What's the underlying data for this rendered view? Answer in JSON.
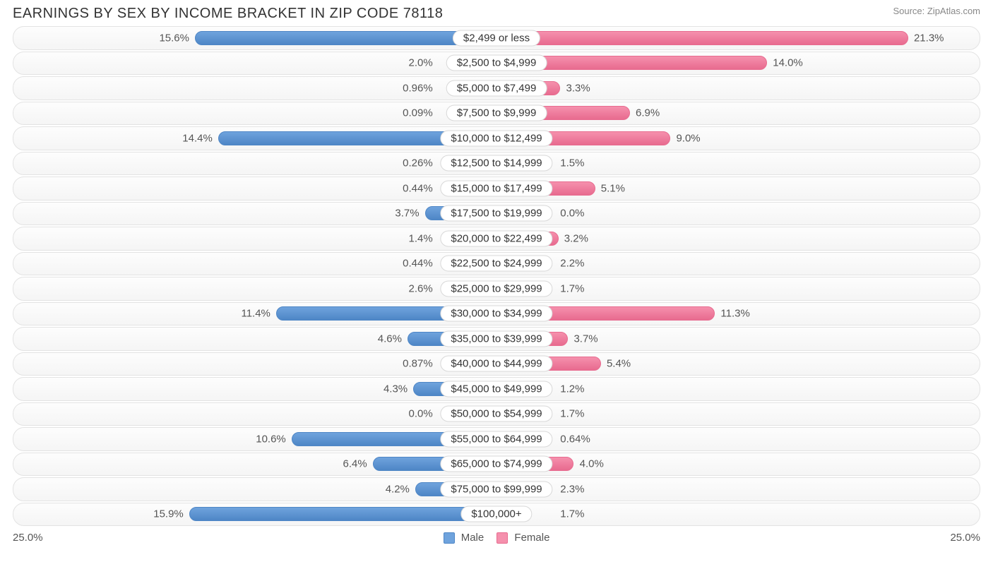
{
  "title": "EARNINGS BY SEX BY INCOME BRACKET IN ZIP CODE 78118",
  "source": "Source: ZipAtlas.com",
  "axis": {
    "left": "25.0%",
    "right": "25.0%",
    "max": 25.0
  },
  "legend": {
    "male": {
      "label": "Male",
      "color": "#6fa3dd",
      "border": "#4e86c6"
    },
    "female": {
      "label": "Female",
      "color": "#f590ad",
      "border": "#e86b8f"
    }
  },
  "label_pill_halfwidth_pct": 6.0,
  "colors": {
    "male_fill": "#6fa3dd",
    "male_stroke": "#4e86c6",
    "female_fill": "#f590ad",
    "female_stroke": "#e86b8f",
    "track_border": "#e3e3e3",
    "pill_border": "#d8d8d8",
    "text": "#555",
    "title": "#333",
    "source": "#888",
    "bg": "#ffffff"
  },
  "rows": [
    {
      "label": "$2,499 or less",
      "male": 15.6,
      "male_txt": "15.6%",
      "female": 21.3,
      "female_txt": "21.3%"
    },
    {
      "label": "$2,500 to $4,999",
      "male": 2.0,
      "male_txt": "2.0%",
      "female": 14.0,
      "female_txt": "14.0%"
    },
    {
      "label": "$5,000 to $7,499",
      "male": 0.96,
      "male_txt": "0.96%",
      "female": 3.3,
      "female_txt": "3.3%"
    },
    {
      "label": "$7,500 to $9,999",
      "male": 0.09,
      "male_txt": "0.09%",
      "female": 6.9,
      "female_txt": "6.9%"
    },
    {
      "label": "$10,000 to $12,499",
      "male": 14.4,
      "male_txt": "14.4%",
      "female": 9.0,
      "female_txt": "9.0%"
    },
    {
      "label": "$12,500 to $14,999",
      "male": 0.26,
      "male_txt": "0.26%",
      "female": 1.5,
      "female_txt": "1.5%"
    },
    {
      "label": "$15,000 to $17,499",
      "male": 0.44,
      "male_txt": "0.44%",
      "female": 5.1,
      "female_txt": "5.1%"
    },
    {
      "label": "$17,500 to $19,999",
      "male": 3.7,
      "male_txt": "3.7%",
      "female": 0.0,
      "female_txt": "0.0%"
    },
    {
      "label": "$20,000 to $22,499",
      "male": 1.4,
      "male_txt": "1.4%",
      "female": 3.2,
      "female_txt": "3.2%"
    },
    {
      "label": "$22,500 to $24,999",
      "male": 0.44,
      "male_txt": "0.44%",
      "female": 2.2,
      "female_txt": "2.2%"
    },
    {
      "label": "$25,000 to $29,999",
      "male": 2.6,
      "male_txt": "2.6%",
      "female": 1.7,
      "female_txt": "1.7%"
    },
    {
      "label": "$30,000 to $34,999",
      "male": 11.4,
      "male_txt": "11.4%",
      "female": 11.3,
      "female_txt": "11.3%"
    },
    {
      "label": "$35,000 to $39,999",
      "male": 4.6,
      "male_txt": "4.6%",
      "female": 3.7,
      "female_txt": "3.7%"
    },
    {
      "label": "$40,000 to $44,999",
      "male": 0.87,
      "male_txt": "0.87%",
      "female": 5.4,
      "female_txt": "5.4%"
    },
    {
      "label": "$45,000 to $49,999",
      "male": 4.3,
      "male_txt": "4.3%",
      "female": 1.2,
      "female_txt": "1.2%"
    },
    {
      "label": "$50,000 to $54,999",
      "male": 0.0,
      "male_txt": "0.0%",
      "female": 1.7,
      "female_txt": "1.7%"
    },
    {
      "label": "$55,000 to $64,999",
      "male": 10.6,
      "male_txt": "10.6%",
      "female": 0.64,
      "female_txt": "0.64%"
    },
    {
      "label": "$65,000 to $74,999",
      "male": 6.4,
      "male_txt": "6.4%",
      "female": 4.0,
      "female_txt": "4.0%"
    },
    {
      "label": "$75,000 to $99,999",
      "male": 4.2,
      "male_txt": "4.2%",
      "female": 2.3,
      "female_txt": "2.3%"
    },
    {
      "label": "$100,000+",
      "male": 15.9,
      "male_txt": "15.9%",
      "female": 1.7,
      "female_txt": "1.7%"
    }
  ]
}
